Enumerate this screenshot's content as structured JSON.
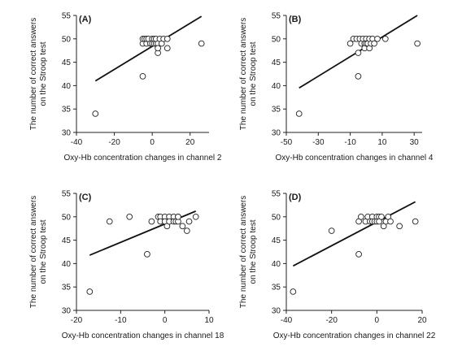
{
  "chart_data": [
    {
      "type": "scatter",
      "panel": "(A)",
      "xlabel": "Oxy-Hb concentration changes in channel 2",
      "ylabel": "The number of correct answers on the Stroop test",
      "xlim": [
        -40,
        30
      ],
      "ylim": [
        30,
        55
      ],
      "xticks": [
        -40,
        -20,
        0,
        20
      ],
      "yticks": [
        30,
        35,
        40,
        45,
        50,
        55
      ],
      "points": [
        [
          -30,
          34
        ],
        [
          -5,
          42
        ],
        [
          -5,
          49
        ],
        [
          -5,
          50
        ],
        [
          -4,
          50
        ],
        [
          -3,
          49
        ],
        [
          -3,
          50
        ],
        [
          -2,
          50
        ],
        [
          -1,
          49
        ],
        [
          0,
          50
        ],
        [
          0,
          49
        ],
        [
          1,
          49
        ],
        [
          1,
          50
        ],
        [
          2,
          49
        ],
        [
          2,
          50
        ],
        [
          3,
          47
        ],
        [
          3,
          49
        ],
        [
          3,
          48
        ],
        [
          4,
          50
        ],
        [
          5,
          49
        ],
        [
          6,
          50
        ],
        [
          8,
          48
        ],
        [
          8,
          50
        ],
        [
          26,
          49
        ]
      ],
      "fit_line": [
        [
          -30,
          41
        ],
        [
          26,
          54.8
        ]
      ]
    },
    {
      "type": "scatter",
      "panel": "(B)",
      "xlabel": "Oxy-Hb concentration changes in channel 4",
      "ylabel": "The number of correct answers on the Stroop test",
      "xlim": [
        -50,
        35
      ],
      "ylim": [
        30,
        55
      ],
      "xticks": [
        -50,
        -30,
        -10,
        10,
        30
      ],
      "yticks": [
        30,
        35,
        40,
        45,
        50,
        55
      ],
      "points": [
        [
          -42,
          34
        ],
        [
          -10,
          49
        ],
        [
          -8,
          50
        ],
        [
          -6,
          50
        ],
        [
          -5,
          42
        ],
        [
          -5,
          47
        ],
        [
          -4,
          50
        ],
        [
          -3,
          49
        ],
        [
          -2,
          50
        ],
        [
          -1,
          49
        ],
        [
          -1,
          48
        ],
        [
          0,
          50
        ],
        [
          0,
          49
        ],
        [
          1,
          49
        ],
        [
          2,
          50
        ],
        [
          2,
          48
        ],
        [
          3,
          49
        ],
        [
          4,
          50
        ],
        [
          5,
          49
        ],
        [
          7,
          50
        ],
        [
          12,
          50
        ],
        [
          32,
          49
        ]
      ],
      "fit_line": [
        [
          -42,
          39.5
        ],
        [
          32,
          55
        ]
      ]
    },
    {
      "type": "scatter",
      "panel": "(C)",
      "xlabel": "Oxy-Hb concentration changes in channel 18",
      "ylabel": "The number of correct answers on the Stroop test",
      "xlim": [
        -20,
        10
      ],
      "ylim": [
        30,
        55
      ],
      "xticks": [
        -20,
        -10,
        0,
        10
      ],
      "yticks": [
        30,
        35,
        40,
        45,
        50,
        55
      ],
      "points": [
        [
          -17,
          34
        ],
        [
          -12.5,
          49
        ],
        [
          -8,
          50
        ],
        [
          -4,
          42
        ],
        [
          -3,
          49
        ],
        [
          -1.5,
          50
        ],
        [
          -1,
          50
        ],
        [
          -1,
          49
        ],
        [
          0,
          50
        ],
        [
          0,
          49
        ],
        [
          0.5,
          48
        ],
        [
          1,
          50
        ],
        [
          1,
          49
        ],
        [
          2,
          50
        ],
        [
          2,
          49
        ],
        [
          2.5,
          49
        ],
        [
          3,
          50
        ],
        [
          3,
          49
        ],
        [
          3,
          50
        ],
        [
          4,
          48
        ],
        [
          5,
          47
        ],
        [
          5.5,
          49
        ],
        [
          7,
          50
        ]
      ],
      "fit_line": [
        [
          -17,
          41.8
        ],
        [
          7,
          51.2
        ]
      ]
    },
    {
      "type": "scatter",
      "panel": "(D)",
      "xlabel": "Oxy-Hb concentration changes in channel 22",
      "ylabel": "The number of correct answers on the Stroop test",
      "xlim": [
        -40,
        20
      ],
      "ylim": [
        30,
        55
      ],
      "xticks": [
        -40,
        -20,
        0,
        20
      ],
      "yticks": [
        30,
        35,
        40,
        45,
        50,
        55
      ],
      "points": [
        [
          -37,
          34
        ],
        [
          -20,
          47
        ],
        [
          -8,
          42
        ],
        [
          -8,
          49
        ],
        [
          -7,
          50
        ],
        [
          -5,
          49
        ],
        [
          -4,
          50
        ],
        [
          -3,
          49
        ],
        [
          -2,
          50
        ],
        [
          -2,
          49
        ],
        [
          -1,
          49
        ],
        [
          0,
          50
        ],
        [
          0,
          49
        ],
        [
          1,
          50
        ],
        [
          1,
          49
        ],
        [
          2,
          50
        ],
        [
          3,
          48
        ],
        [
          4,
          49
        ],
        [
          5,
          50
        ],
        [
          6,
          49
        ],
        [
          10,
          48
        ],
        [
          17,
          49
        ]
      ],
      "fit_line": [
        [
          -37,
          39.5
        ],
        [
          17,
          53.2
        ]
      ]
    }
  ]
}
